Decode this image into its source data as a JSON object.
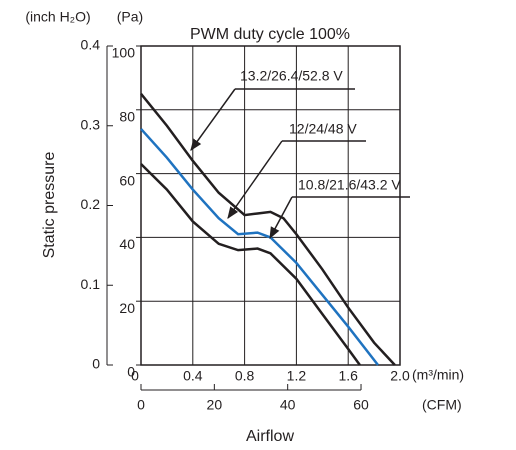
{
  "chart_data": {
    "type": "line",
    "title": "PWM duty cycle 100%",
    "x_label": "Airflow",
    "y_label": "Static pressure",
    "x_unit": "(m³/min)",
    "x2_unit": "(CFM)",
    "y_unit": "(Pa)",
    "y2_unit": "(inch H₂O)",
    "xlim": [
      0,
      2
    ],
    "xticks": [
      0,
      0.4,
      0.8,
      1.2,
      1.6,
      {
        "value": 2,
        "label": "2.0"
      }
    ],
    "x2lim": [
      0,
      70.63
    ],
    "x2ticks": [
      0,
      20,
      40,
      60
    ],
    "ylim": [
      0,
      100
    ],
    "yticks": [
      0,
      20,
      40,
      60,
      80,
      100
    ],
    "y2lim": [
      0,
      0.4
    ],
    "y2ticks": [
      0,
      0.1,
      0.2,
      0.3,
      0.4
    ],
    "grid": true,
    "series": [
      {
        "name": "13.2/26.4/52.8 V",
        "color": "#231f20",
        "x": [
          0,
          0.2,
          0.4,
          0.6,
          0.8,
          0.9,
          1.0,
          1.1,
          1.2,
          1.4,
          1.6,
          1.8,
          1.96
        ],
        "values": [
          85,
          75,
          64,
          54,
          47,
          47.5,
          48,
          46,
          41,
          30,
          18,
          7,
          0
        ]
      },
      {
        "name": "12/24/48 V",
        "color": "#1f73c0",
        "x": [
          0,
          0.2,
          0.4,
          0.6,
          0.75,
          0.9,
          1.0,
          1.2,
          1.4,
          1.6,
          1.83
        ],
        "values": [
          74,
          65,
          55,
          46,
          41,
          41.5,
          40,
          32,
          22,
          12,
          0
        ]
      },
      {
        "name": "10.8/21.6/43.2 V",
        "color": "#231f20",
        "x": [
          0,
          0.2,
          0.4,
          0.6,
          0.75,
          0.9,
          1.0,
          1.2,
          1.4,
          1.6,
          1.69
        ],
        "values": [
          63,
          55,
          45,
          38,
          36,
          36.5,
          35,
          27,
          16,
          5,
          0
        ]
      }
    ]
  }
}
